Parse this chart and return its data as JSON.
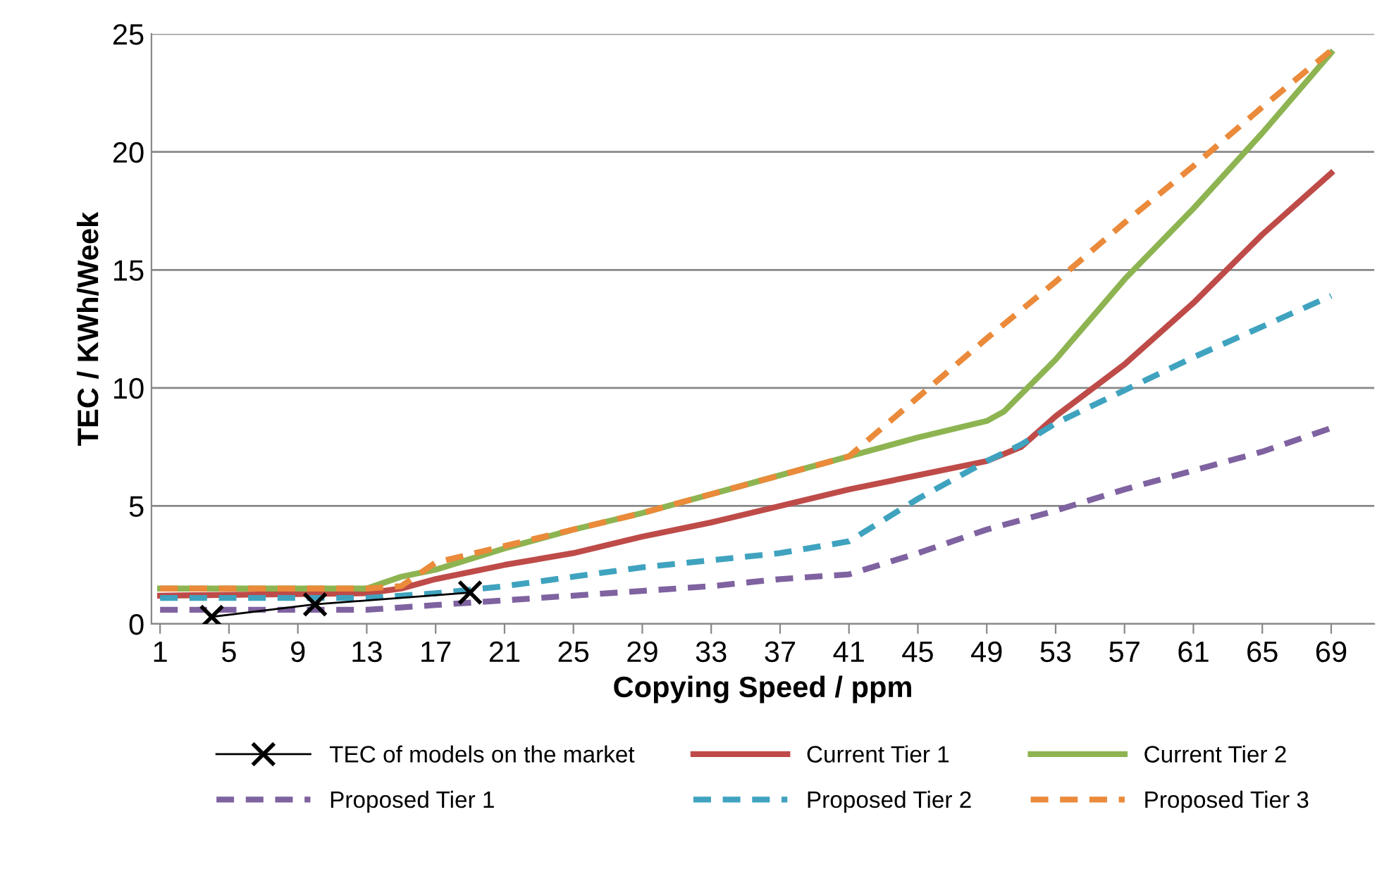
{
  "chart_data": {
    "type": "line",
    "xlabel": "Copying Speed / ppm",
    "ylabel": "TEC / KWh/Week",
    "xlim": [
      0.5,
      71.5
    ],
    "xticks": [
      1,
      5,
      9,
      13,
      17,
      21,
      25,
      29,
      33,
      37,
      41,
      45,
      49,
      53,
      57,
      61,
      65,
      69
    ],
    "ylim": [
      0,
      25
    ],
    "yticks": [
      0,
      5,
      10,
      15,
      20,
      25
    ],
    "grid": "y",
    "legend": "bottom",
    "series": [
      {
        "name": "TEC of models on the market",
        "color": "#000000",
        "marker": "cross",
        "line_style": "solid",
        "x": [
          4,
          10,
          19
        ],
        "values": [
          0.3,
          0.83,
          1.33
        ]
      },
      {
        "name": "Current Tier 1",
        "color": "#be4b48",
        "line_style": "solid",
        "x": [
          1,
          13,
          15,
          17,
          21,
          25,
          29,
          33,
          37,
          41,
          45,
          49,
          51,
          53,
          57,
          61,
          65,
          69
        ],
        "values": [
          1.2,
          1.3,
          1.5,
          1.9,
          2.5,
          3.0,
          3.7,
          4.3,
          5.0,
          5.7,
          6.3,
          6.9,
          7.5,
          8.8,
          11.0,
          13.6,
          16.5,
          19.1
        ]
      },
      {
        "name": "Current Tier 2",
        "color": "#8db451",
        "line_style": "solid",
        "x": [
          1,
          13,
          15,
          17,
          21,
          25,
          29,
          33,
          37,
          41,
          45,
          49,
          50,
          53,
          57,
          61,
          65,
          69
        ],
        "values": [
          1.5,
          1.5,
          2.0,
          2.3,
          3.2,
          4.0,
          4.7,
          5.5,
          6.3,
          7.1,
          7.9,
          8.6,
          9.0,
          11.2,
          14.6,
          17.6,
          20.8,
          24.2
        ]
      },
      {
        "name": "Proposed Tier 1",
        "color": "#7f62a0",
        "line_style": "dashed",
        "x": [
          1,
          13,
          15,
          17,
          21,
          25,
          29,
          33,
          37,
          41,
          45,
          49,
          51,
          53,
          57,
          61,
          65,
          69
        ],
        "values": [
          0.6,
          0.6,
          0.7,
          0.8,
          1.0,
          1.2,
          1.4,
          1.6,
          1.9,
          2.1,
          3.0,
          4.0,
          4.4,
          4.8,
          5.7,
          6.5,
          7.3,
          8.3
        ]
      },
      {
        "name": "Proposed Tier 2",
        "color": "#3fa3bf",
        "line_style": "dashed",
        "x": [
          1,
          13,
          15,
          17,
          21,
          25,
          29,
          33,
          37,
          41,
          45,
          49,
          51,
          53,
          57,
          61,
          65,
          69
        ],
        "values": [
          1.1,
          1.1,
          1.2,
          1.3,
          1.6,
          2.0,
          2.4,
          2.7,
          3.0,
          3.5,
          5.3,
          6.9,
          7.6,
          8.5,
          9.9,
          11.3,
          12.6,
          13.9
        ]
      },
      {
        "name": "Proposed Tier 3",
        "color": "#ea8a3a",
        "line_style": "dashed",
        "x": [
          1,
          13,
          15,
          17,
          21,
          25,
          29,
          33,
          37,
          41,
          45,
          49,
          51,
          53,
          57,
          61,
          65,
          69
        ],
        "values": [
          1.5,
          1.5,
          1.6,
          2.6,
          3.3,
          4.0,
          4.7,
          5.5,
          6.3,
          7.1,
          9.6,
          12.1,
          13.3,
          14.5,
          17.0,
          19.4,
          21.9,
          24.3
        ]
      }
    ]
  }
}
